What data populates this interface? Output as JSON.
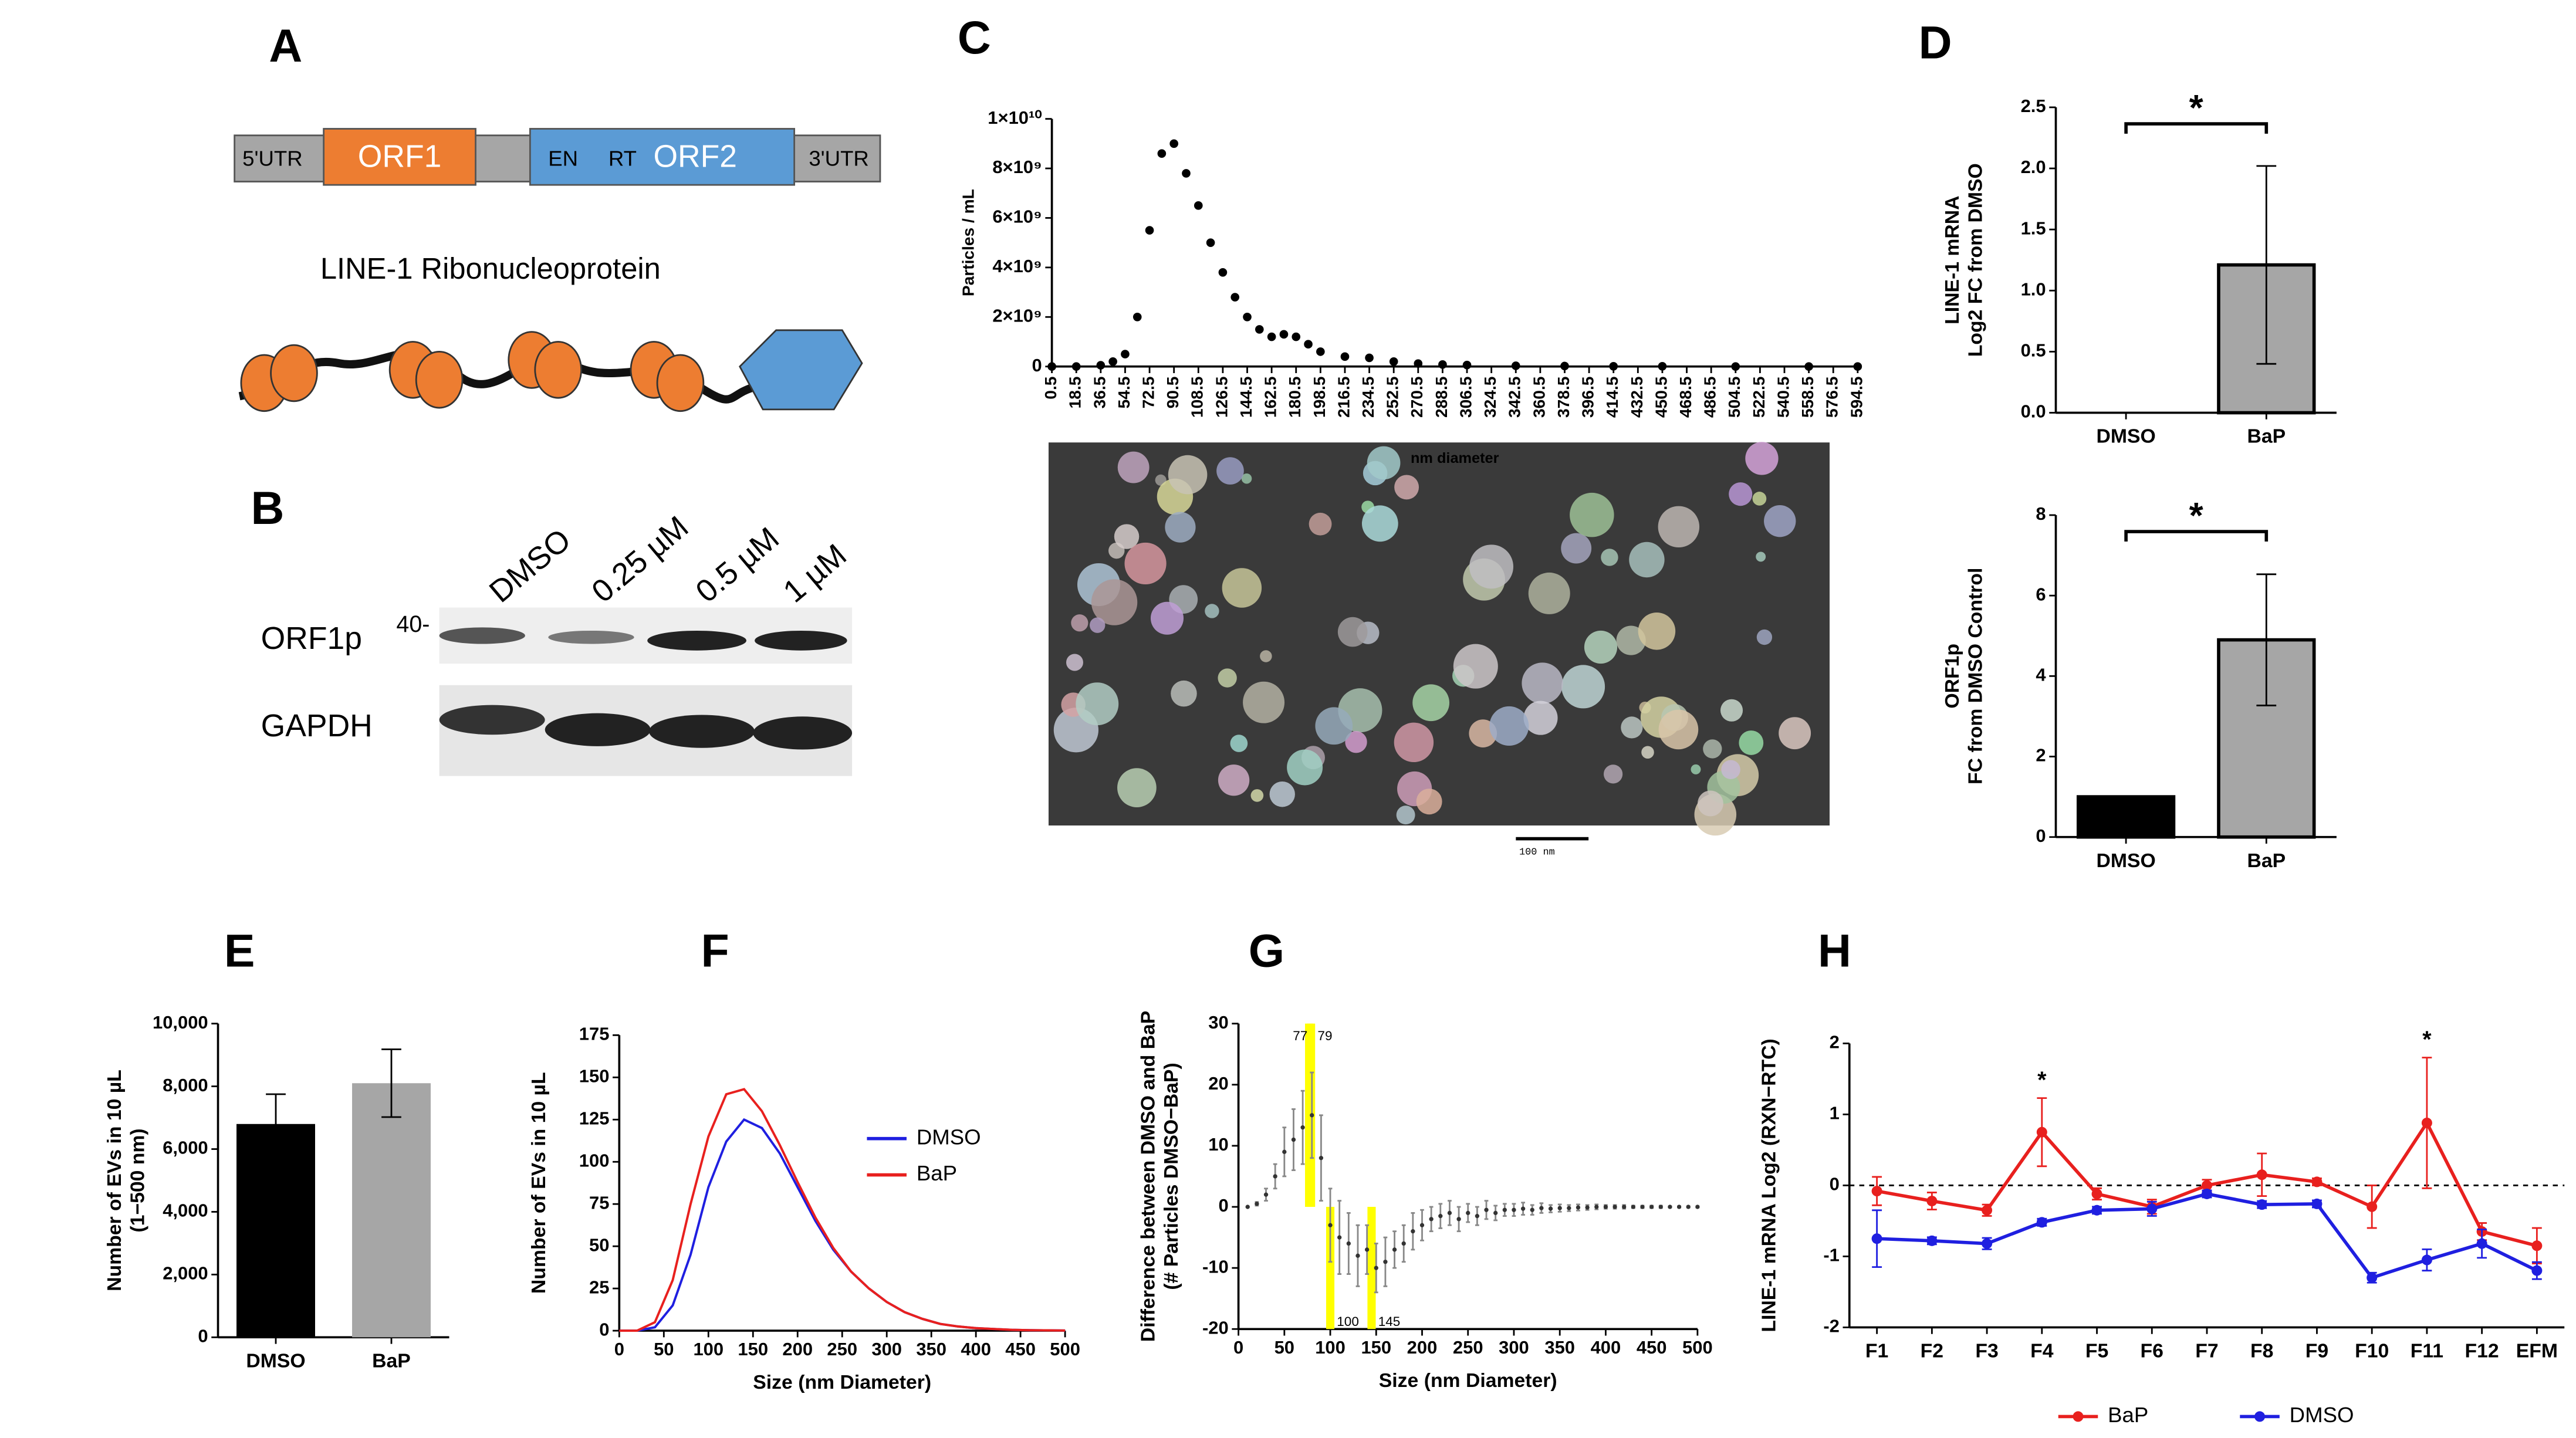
{
  "figure": {
    "panels": [
      "A",
      "B",
      "C",
      "D",
      "E",
      "F",
      "G",
      "H"
    ],
    "gene": {
      "segments": [
        "5'UTR",
        "ORF1",
        "EN",
        "RT",
        "ORF2",
        "3'UTR"
      ],
      "title": "LINE-1 Ribonucleoprotein"
    },
    "blot": {
      "lanes": [
        "DMSO",
        "0.25 µM",
        "0.5 µM",
        "1 µM"
      ],
      "proteins": [
        "ORF1p",
        "GAPDH"
      ],
      "marker": "40-"
    },
    "tem": {
      "scale": "100 nm"
    }
  },
  "chart_data": [
    {
      "type": "scatter",
      "ylabel": "Particles / mL",
      "xlabel": "nm diameter",
      "color": "#000000",
      "x": [
        0.5,
        18.5,
        36.5,
        45.5,
        54.5,
        63.5,
        72.5,
        81.5,
        90.5,
        99.5,
        108.5,
        117.5,
        126.5,
        135.5,
        144.5,
        153.5,
        162.5,
        171.5,
        180.5,
        189.5,
        198.5,
        216.5,
        234.5,
        252.5,
        270.5,
        288.5,
        306.5,
        342.5,
        378.5,
        414.5,
        450.5,
        504.5,
        558.5,
        594.5
      ],
      "values": [
        0,
        0,
        50000000.0,
        200000000.0,
        500000000.0,
        2000000000.0,
        5500000000.0,
        8600000000.0,
        9000000000.0,
        7800000000.0,
        6500000000.0,
        5000000000.0,
        3800000000.0,
        2800000000.0,
        2000000000.0,
        1500000000.0,
        1200000000.0,
        1300000000.0,
        1200000000.0,
        900000000.0,
        600000000.0,
        400000000.0,
        350000000.0,
        200000000.0,
        120000000.0,
        80000000.0,
        60000000.0,
        30000000.0,
        20000000.0,
        10000000.0,
        10000000.0,
        0,
        0,
        0
      ],
      "xlim": [
        0.5,
        594.5
      ],
      "xticks": [
        0.5,
        18.5,
        36.5,
        54.5,
        72.5,
        90.5,
        108.5,
        126.5,
        144.5,
        162.5,
        180.5,
        198.5,
        216.5,
        234.5,
        252.5,
        270.5,
        288.5,
        306.5,
        324.5,
        342.5,
        360.5,
        378.5,
        396.5,
        414.5,
        432.5,
        450.5,
        468.5,
        486.5,
        504.5,
        522.5,
        540.5,
        558.5,
        576.5,
        594.5
      ],
      "ylim": [
        0,
        10000000000.0
      ],
      "yticks": [
        0,
        {
          "value": 2000000000.0,
          "label": "2×10⁹"
        },
        {
          "value": 4000000000.0,
          "label": "4×10⁹"
        },
        {
          "value": 6000000000.0,
          "label": "6×10⁹"
        },
        {
          "value": 8000000000.0,
          "label": "8×10⁹"
        },
        {
          "value": 10000000000.0,
          "label": "1×10¹⁰"
        }
      ]
    },
    {
      "type": "bar",
      "ylabel": [
        "LINE-1 mRNA",
        "Log2 FC from DMSO"
      ],
      "categories": [
        "DMSO",
        "BaP"
      ],
      "values": [
        0,
        1.21
      ],
      "errors": [
        0,
        0.81
      ],
      "colors": [
        "#000000",
        "#a6a6a6"
      ],
      "edgecolor": "#000000",
      "annotation": "*",
      "ylim": [
        0,
        2.5
      ],
      "yticks": [
        {
          "value": 0,
          "label": "0.0"
        },
        {
          "value": 0.5,
          "label": "0.5"
        },
        {
          "value": 1,
          "label": "1.0"
        },
        {
          "value": 1.5,
          "label": "1.5"
        },
        {
          "value": 2,
          "label": "2.0"
        },
        {
          "value": 2.5,
          "label": "2.5"
        }
      ]
    },
    {
      "type": "bar",
      "ylabel": [
        "ORF1p",
        "FC from DMSO Control"
      ],
      "categories": [
        "DMSO",
        "BaP"
      ],
      "values": [
        1,
        4.9
      ],
      "errors": [
        0,
        1.63
      ],
      "colors": [
        "#000000",
        "#a6a6a6"
      ],
      "edgecolor": "#000000",
      "annotation": "*",
      "ylim": [
        0,
        8
      ],
      "yticks": [
        0,
        2,
        4,
        6,
        8
      ]
    },
    {
      "type": "bar",
      "ylabel": [
        "Number of EVs in 10 µL",
        "(1−500 nm)"
      ],
      "categories": [
        "DMSO",
        "BaP"
      ],
      "values": [
        6800,
        8100
      ],
      "errors": [
        950,
        1080
      ],
      "colors": [
        "#000000",
        "#a6a6a6"
      ],
      "ylim": [
        0,
        10000
      ],
      "yticks": [
        0,
        {
          "value": 2000,
          "label": "2,000"
        },
        {
          "value": 4000,
          "label": "4,000"
        },
        {
          "value": 6000,
          "label": "6,000"
        },
        {
          "value": 8000,
          "label": "8,000"
        },
        {
          "value": 10000,
          "label": "10,000"
        }
      ]
    },
    {
      "type": "line",
      "xlabel": "Size (nm Diameter)",
      "ylabel": "Number of EVs in 10 µL",
      "legend": "right",
      "x": [
        0,
        20,
        40,
        60,
        80,
        100,
        120,
        140,
        160,
        180,
        200,
        220,
        240,
        260,
        280,
        300,
        320,
        340,
        360,
        380,
        400,
        420,
        440,
        460,
        480,
        500
      ],
      "series": [
        {
          "name": "DMSO",
          "color": "#1f1fe0",
          "values": [
            0,
            0,
            2,
            15,
            45,
            85,
            112,
            125,
            120,
            105,
            85,
            65,
            48,
            35,
            25,
            17,
            11,
            7,
            4,
            2.5,
            1.5,
            1,
            0.5,
            0.3,
            0.2,
            0.1
          ]
        },
        {
          "name": "BaP",
          "color": "#e8201e",
          "values": [
            0,
            0,
            5,
            30,
            75,
            115,
            140,
            143,
            130,
            110,
            88,
            67,
            49,
            35,
            25,
            17,
            11,
            7,
            4,
            2.5,
            1.5,
            1,
            0.5,
            0.3,
            0.2,
            0.1
          ]
        }
      ],
      "xlim": [
        0,
        500
      ],
      "xticks": [
        0,
        50,
        100,
        150,
        200,
        250,
        300,
        350,
        400,
        450,
        500
      ],
      "ylim": [
        0,
        175
      ],
      "yticks": [
        0,
        25,
        50,
        75,
        100,
        125,
        150,
        175
      ]
    },
    {
      "type": "scatter",
      "xlabel": "Size (nm Diameter)",
      "ylabel": [
        "Difference between DMSO and BaP",
        "(# Particles DMSO−BaP)"
      ],
      "color": "#333333",
      "x": [
        10,
        20,
        30,
        40,
        50,
        60,
        70,
        80,
        90,
        100,
        110,
        120,
        130,
        140,
        150,
        160,
        170,
        180,
        190,
        200,
        210,
        220,
        230,
        240,
        250,
        260,
        270,
        280,
        290,
        300,
        310,
        320,
        330,
        340,
        350,
        360,
        370,
        380,
        390,
        400,
        410,
        420,
        430,
        440,
        450,
        460,
        470,
        480,
        490,
        500
      ],
      "values": [
        0,
        0.5,
        2,
        5,
        9,
        11,
        13,
        15,
        8,
        -3,
        -5,
        -6,
        -8,
        -7,
        -10,
        -9,
        -7,
        -6,
        -4,
        -3,
        -2,
        -1.5,
        -1,
        -2,
        -1,
        -1.5,
        -0.5,
        -1,
        -0.5,
        -0.5,
        -0.3,
        -0.5,
        -0.2,
        -0.3,
        -0.2,
        -0.2,
        -0.1,
        -0.1,
        0,
        0,
        0,
        0,
        0,
        0,
        0,
        0,
        0,
        0,
        0,
        0
      ],
      "errors": [
        0,
        0.3,
        1,
        2,
        4,
        5,
        6,
        7,
        7,
        6,
        6,
        5,
        5,
        4,
        4,
        4,
        3,
        3,
        3,
        2.5,
        2,
        2,
        2,
        2,
        1.5,
        1.5,
        1.5,
        1.2,
        1,
        1,
        1,
        0.8,
        0.8,
        0.6,
        0.6,
        0.5,
        0.5,
        0.4,
        0.4,
        0.3,
        0.3,
        0.3,
        0.2,
        0.2,
        0.2,
        0.2,
        0.1,
        0.1,
        0.1,
        0.1
      ],
      "highlights": [
        77,
        79,
        100,
        145
      ],
      "highlight_color": "#ffff00",
      "xlim": [
        0,
        500
      ],
      "xticks": [
        0,
        50,
        100,
        150,
        200,
        250,
        300,
        350,
        400,
        450,
        500
      ],
      "ylim": [
        -20,
        30
      ],
      "yticks": [
        -20,
        -10,
        0,
        10,
        20,
        30
      ]
    },
    {
      "type": "line",
      "ylabel": "LINE-1 mRNA Log2 (RXN−RTC)",
      "legend": "bottom",
      "markers": true,
      "hline": 0,
      "categories": [
        "F1",
        "F2",
        "F3",
        "F4",
        "F5",
        "F6",
        "F7",
        "F8",
        "F9",
        "F10",
        "F11",
        "F12",
        "EFM"
      ],
      "series": [
        {
          "name": "BaP",
          "color": "#e8201e",
          "values": [
            -0.08,
            -0.22,
            -0.35,
            0.75,
            -0.12,
            -0.3,
            0,
            0.15,
            0.05,
            -0.3,
            0.88,
            -0.65,
            -0.85
          ],
          "errors": [
            0.2,
            0.12,
            0.08,
            0.48,
            0.08,
            0.1,
            0.08,
            0.3,
            0.05,
            0.3,
            0.92,
            0.12,
            0.25
          ]
        },
        {
          "name": "DMSO",
          "color": "#1f1fe0",
          "values": [
            -0.75,
            -0.78,
            -0.82,
            -0.52,
            -0.35,
            -0.33,
            -0.12,
            -0.27,
            -0.26,
            -1.3,
            -1.05,
            -0.82,
            -1.2
          ],
          "errors": [
            0.4,
            0.05,
            0.08,
            0.05,
            0.05,
            0.1,
            0.05,
            0.05,
            0.05,
            0.07,
            0.15,
            0.2,
            0.12
          ]
        }
      ],
      "annotations": [
        {
          "x": "F4",
          "text": "*"
        },
        {
          "x": "F11",
          "text": "*"
        }
      ],
      "ylim": [
        -2,
        2
      ],
      "yticks": [
        -2,
        -1,
        0,
        1,
        2
      ]
    }
  ]
}
